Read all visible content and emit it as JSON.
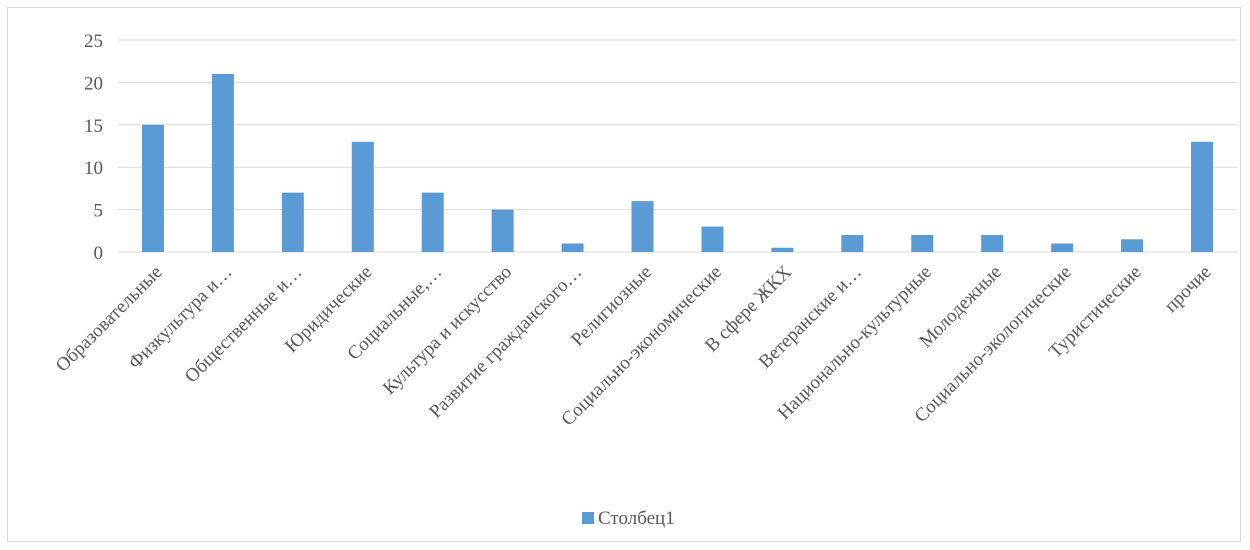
{
  "chart_data": {
    "type": "bar",
    "categories": [
      "Образовательные",
      "Физкультура и…",
      "Общественные и…",
      "Юридические",
      "Социальные,…",
      "Культура и искусство",
      "Развитие гражданского…",
      "Религиозные",
      "Социально-экономические",
      "В сфере ЖКХ",
      "Ветеранские и…",
      "Национально-культурные",
      "Молодежные",
      "Социально-экологические",
      "Туристические",
      "прочие"
    ],
    "series": [
      {
        "name": "Столбец1",
        "values": [
          15,
          21,
          7,
          13,
          7,
          5,
          1,
          6,
          3,
          0.5,
          2,
          2,
          2,
          1,
          1.5,
          13
        ],
        "color": "#5b9bd5"
      }
    ],
    "y_ticks": [
      "0",
      "5",
      "10",
      "15",
      "20",
      "25"
    ],
    "ylim": [
      0,
      25
    ],
    "grid": true,
    "legend_position": "bottom",
    "colors": {
      "gridline": "#d9d9d9",
      "text": "#595959",
      "border": "#d9d9d9"
    }
  }
}
